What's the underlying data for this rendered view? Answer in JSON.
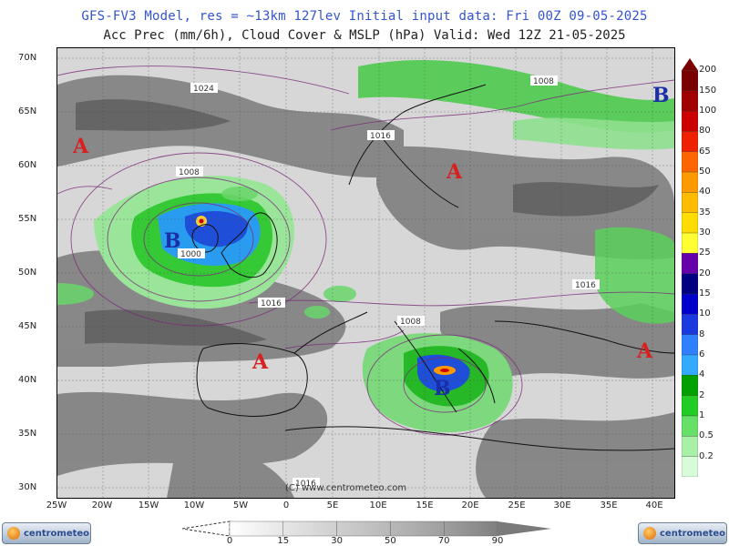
{
  "header": {
    "line1": "GFS-FV3 Model, res = ~13km 127lev    Initial input data: Fri 00Z 09-05-2025",
    "line2": "Acc Prec (mm/6h), Cloud Cover & MSLP (hPa)  Valid: Wed 12Z 21-05-2025"
  },
  "map": {
    "lat_labels": [
      "70N",
      "65N",
      "60N",
      "55N",
      "50N",
      "45N",
      "40N",
      "35N",
      "30N"
    ],
    "lon_labels": [
      "25W",
      "20W",
      "15W",
      "10W",
      "5W",
      "0",
      "5E",
      "10E",
      "15E",
      "20E",
      "25E",
      "30E",
      "35E",
      "40E"
    ],
    "copyright": "(C) www.centrometeo.com",
    "pressure_centers": [
      {
        "letter": "A",
        "type": "high",
        "color": "#d82020"
      },
      {
        "letter": "A",
        "type": "high",
        "color": "#d82020"
      },
      {
        "letter": "A",
        "type": "high",
        "color": "#d82020"
      },
      {
        "letter": "A",
        "type": "high",
        "color": "#d82020"
      },
      {
        "letter": "B",
        "type": "low",
        "color": "#1a2ea8"
      },
      {
        "letter": "B",
        "type": "low",
        "color": "#1a2ea8"
      },
      {
        "letter": "B",
        "type": "low",
        "color": "#1a2ea8"
      }
    ],
    "isobar_labels": [
      "1024",
      "1016",
      "1008",
      "1000",
      "1016",
      "1016",
      "1008",
      "1008",
      "1016",
      "1016"
    ]
  },
  "precip_scale": {
    "labels": [
      "200",
      "150",
      "100",
      "80",
      "65",
      "50",
      "40",
      "35",
      "30",
      "25",
      "20",
      "15",
      "10",
      "8",
      "6",
      "4",
      "2",
      "1",
      "0.5",
      "0.2"
    ],
    "colors": [
      "#7a0000",
      "#a00000",
      "#cc0000",
      "#ee2200",
      "#ff6600",
      "#ff9900",
      "#ffbb00",
      "#ffdd00",
      "#ffff33",
      "#6600aa",
      "#000080",
      "#0000cc",
      "#1a3ae0",
      "#2f7fff",
      "#33aaff",
      "#00a000",
      "#22cc22",
      "#66e066",
      "#a8f0a8",
      "#d8fbd8"
    ]
  },
  "cloud_scale": {
    "labels": [
      "0",
      "15",
      "30",
      "50",
      "70",
      "90"
    ],
    "colors": [
      "#ffffff",
      "#e6e6e6",
      "#cfcfcf",
      "#b8b8b8",
      "#9f9f9f",
      "#808080"
    ]
  },
  "logos": {
    "left_text": "centrometeo",
    "right_text": "centrometeo"
  }
}
